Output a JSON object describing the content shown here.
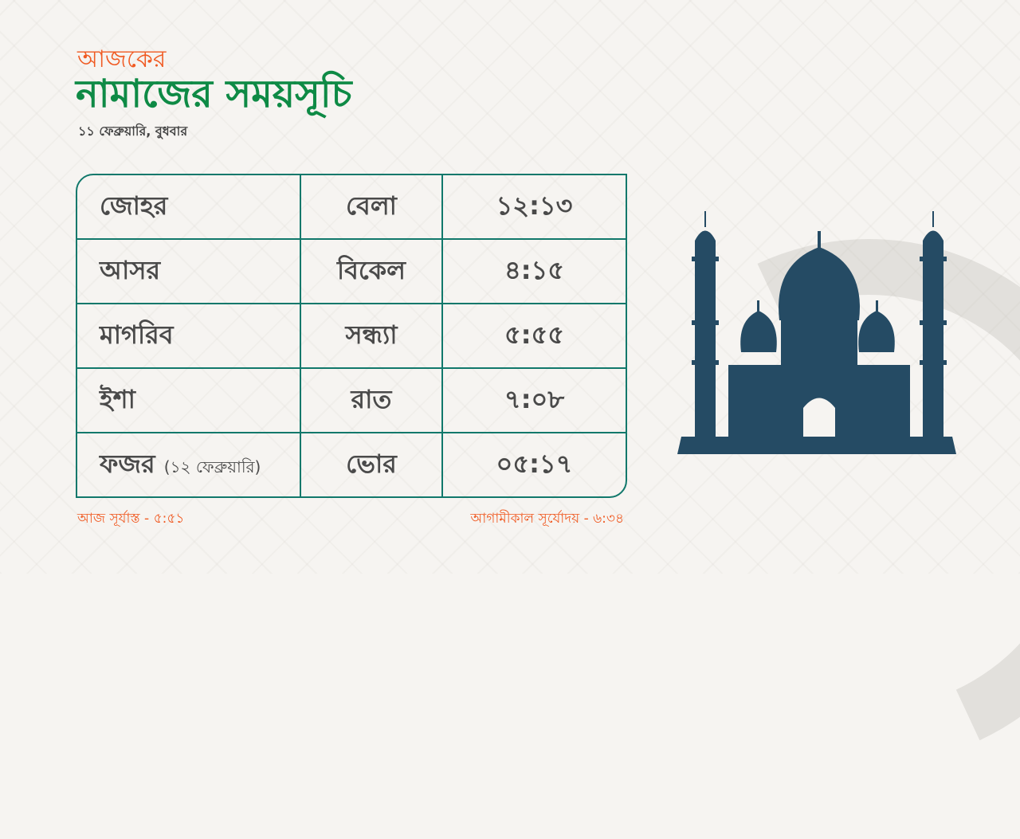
{
  "header": {
    "kicker": "আজকের",
    "title": "নামাজের সময়সূচি",
    "date": "১১ ফেব্রুয়ারি, বুধবার"
  },
  "prayers": [
    {
      "name": "জোহর",
      "note": "",
      "period": "বেলা",
      "time": "১২:১৩"
    },
    {
      "name": "আসর",
      "note": "",
      "period": "বিকেল",
      "time": "৪:১৫"
    },
    {
      "name": "মাগরিব",
      "note": "",
      "period": "সন্ধ্যা",
      "time": "৫:৫৫"
    },
    {
      "name": "ইশা",
      "note": "",
      "period": "রাত",
      "time": "৭:০৮"
    },
    {
      "name": "ফজর",
      "note": "(১২ ফেব্রুয়ারি)",
      "period": "ভোর",
      "time": "০৫:১৭"
    }
  ],
  "footer": {
    "sunset": "আজ সূর্যাস্ত - ৫:৫১",
    "sunrise": "আগামীকাল সূর্যোদয় -  ৬:৩৪"
  },
  "colors": {
    "accent": "#f05a22",
    "title": "#0e8a45",
    "table_border": "#11786b",
    "mosque": "#254b64"
  },
  "icons": {
    "illustration": "mosque-icon"
  }
}
